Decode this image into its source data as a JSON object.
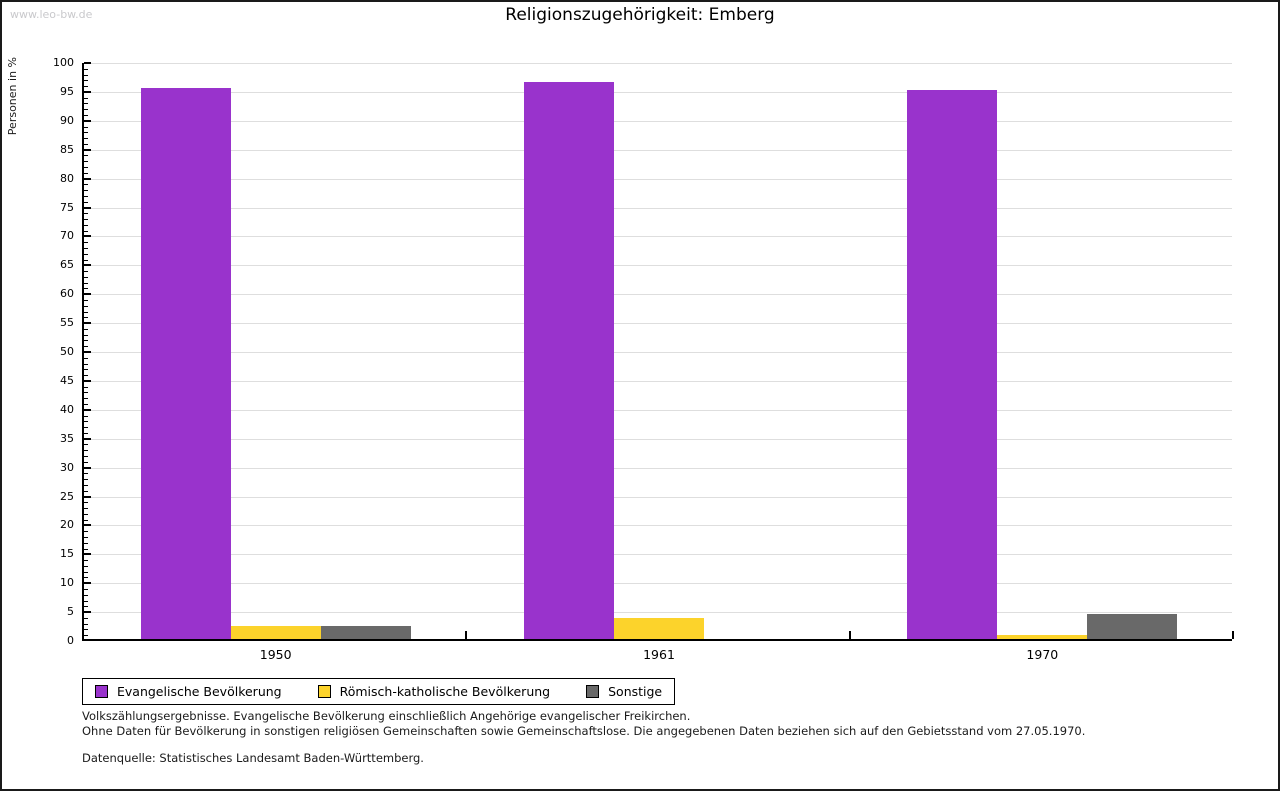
{
  "watermark": "www.leo-bw.de",
  "title": "Religionszugehörigkeit: Emberg",
  "chart_data": {
    "type": "bar",
    "title": "Religionszugehörigkeit: Emberg",
    "categories": [
      "1950",
      "1961",
      "1970"
    ],
    "series": [
      {
        "name": "Evangelische Bevölkerung",
        "color": "#9933cc",
        "values": [
          95.4,
          96.4,
          94.9
        ]
      },
      {
        "name": "Römisch-katholische Bevölkerung",
        "color": "#fcd32b",
        "values": [
          2.3,
          3.6,
          0.7
        ]
      },
      {
        "name": "Sonstige",
        "color": "#696969",
        "values": [
          2.3,
          0,
          4.4
        ]
      }
    ],
    "xlabel": "",
    "ylabel": "Personen in %",
    "ylim": [
      0,
      100
    ],
    "ytick_step": 5,
    "minor_tick_step": 1,
    "grid": true,
    "legend_position": "bottom"
  },
  "footnotes": {
    "line1": "Volkszählungsergebnisse. Evangelische Bevölkerung einschließlich Angehörige evangelischer Freikirchen.",
    "line2": "Ohne Daten für Bevölkerung in sonstigen religiösen Gemeinschaften sowie Gemeinschaftslose. Die angegebenen Daten beziehen sich auf den Gebietsstand vom 27.05.1970.",
    "source": "Datenquelle: Statistisches Landesamt Baden-Württemberg."
  }
}
